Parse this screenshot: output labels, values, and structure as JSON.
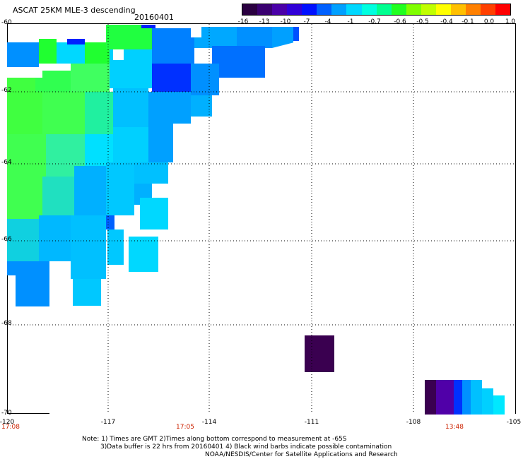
{
  "header": {
    "title": "ASCAT 25KM MLE-3 descending",
    "date": "20160401"
  },
  "legend": {
    "labels": [
      "-16",
      "-13",
      "-10",
      "-7",
      "-4",
      "-1",
      "-0.7",
      "-0.6",
      "-0.5",
      "-0.4",
      "-0.1",
      "0.0",
      "1.0"
    ],
    "colors": [
      "#2a0040",
      "#3a0070",
      "#4a00a8",
      "#3000d8",
      "#0010ff",
      "#0060ff",
      "#00a0ff",
      "#00d8ff",
      "#00ffe0",
      "#00ff90",
      "#20ff20",
      "#80ff00",
      "#c0ff00",
      "#ffff00",
      "#ffc000",
      "#ff8000",
      "#ff4000",
      "#ff0000"
    ]
  },
  "axes": {
    "y_labels": [
      "-60",
      "-62",
      "-64",
      "-66",
      "-68",
      "-70"
    ],
    "x_labels": [
      "-120",
      "-117",
      "-114",
      "-111",
      "-108",
      "-105"
    ],
    "time_labels": [
      "17:08",
      "17:05",
      "13:48"
    ]
  },
  "notes": {
    "line1": "Note: 1) Times are GMT 2)Times along bottom correspond to measurement at -65S",
    "line2": "3)Data buffer is 22 hrs from 20160401 4) Black wind barbs indicate possible contamination",
    "line3": "NOAA/NESDIS/Center for Satellite Applications and Research"
  }
}
